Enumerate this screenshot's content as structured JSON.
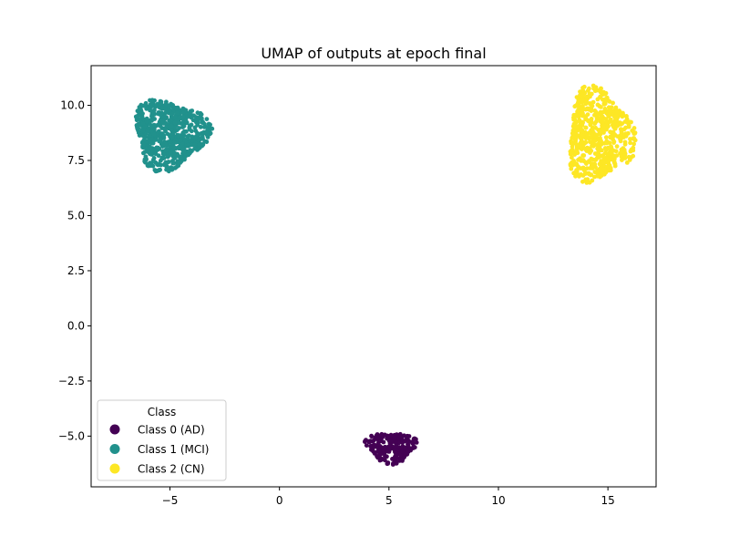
{
  "chart_data": {
    "type": "scatter",
    "title": "UMAP of outputs at epoch final",
    "xlabel": "",
    "ylabel": "",
    "xlim": [
      -8.6,
      17.2
    ],
    "ylim": [
      -7.3,
      11.8
    ],
    "x_ticks": [
      -5,
      0,
      5,
      10,
      15
    ],
    "x_tick_labels": [
      "−5",
      "0",
      "5",
      "10",
      "15"
    ],
    "y_ticks": [
      -5.0,
      -2.5,
      0.0,
      2.5,
      5.0,
      7.5,
      10.0
    ],
    "y_tick_labels": [
      "−5.0",
      "−2.5",
      "0.0",
      "2.5",
      "5.0",
      "7.5",
      "10.0"
    ],
    "grid": false,
    "legend": {
      "title": "Class",
      "placement": "lower-left",
      "entries": [
        {
          "label": "Class 0 (AD)",
          "color": "#440154"
        },
        {
          "label": "Class 1 (MCI)",
          "color": "#21918c"
        },
        {
          "label": "Class 2 (CN)",
          "color": "#fde725"
        }
      ]
    },
    "series": [
      {
        "name": "Class 0 (AD)",
        "color": "#440154",
        "cluster": {
          "x_range": [
            3.8,
            6.4
          ],
          "y_range": [
            -6.3,
            -4.7
          ],
          "center": [
            5.1,
            -5.5
          ],
          "approx_count": 260
        }
      },
      {
        "name": "Class 1 (MCI)",
        "color": "#21918c",
        "cluster": {
          "x_range": [
            -7.4,
            -3.5
          ],
          "y_range": [
            7.0,
            10.6
          ],
          "center": [
            -5.0,
            8.7
          ],
          "approx_count": 700
        }
      },
      {
        "name": "Class 2 (CN)",
        "color": "#fde725",
        "cluster": {
          "x_range": [
            12.5,
            16.0
          ],
          "y_range": [
            6.0,
            10.9
          ],
          "center": [
            14.6,
            8.6
          ],
          "approx_count": 600
        }
      }
    ]
  }
}
